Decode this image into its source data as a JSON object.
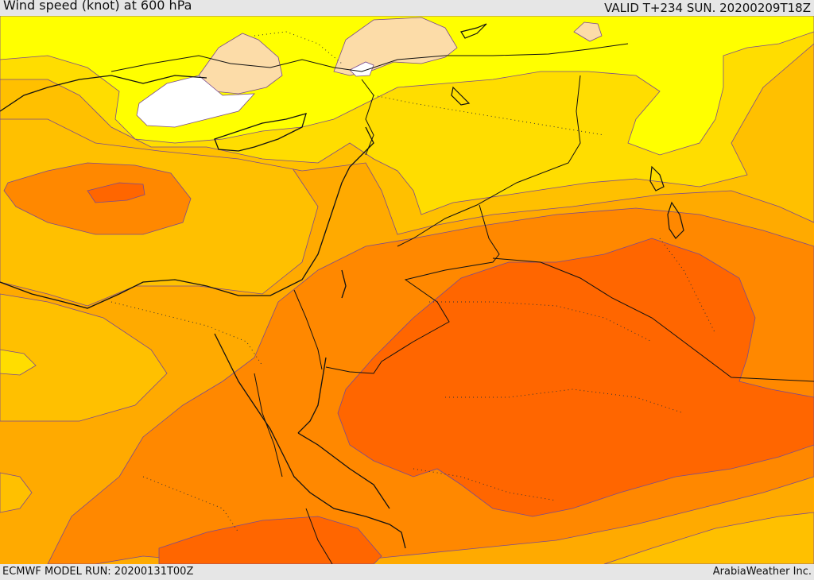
{
  "header": {
    "title": "Wind speed (knot) at 600 hPa",
    "valid": "VALID T+234 SUN. 20200209T18Z"
  },
  "footer": {
    "model_run": "ECMWF MODEL RUN: 20200131T00Z",
    "credit": "ArabiaWeather Inc."
  },
  "colors": {
    "white": "#ffffff",
    "peach": "#fcdca8",
    "yellow": "#ffff00",
    "yellow_gold": "#ffdd00",
    "gold": "#ffc000",
    "orange_light": "#ffaa00",
    "orange": "#ff8800",
    "orange_dark": "#ff6600",
    "coast": "#111111"
  }
}
